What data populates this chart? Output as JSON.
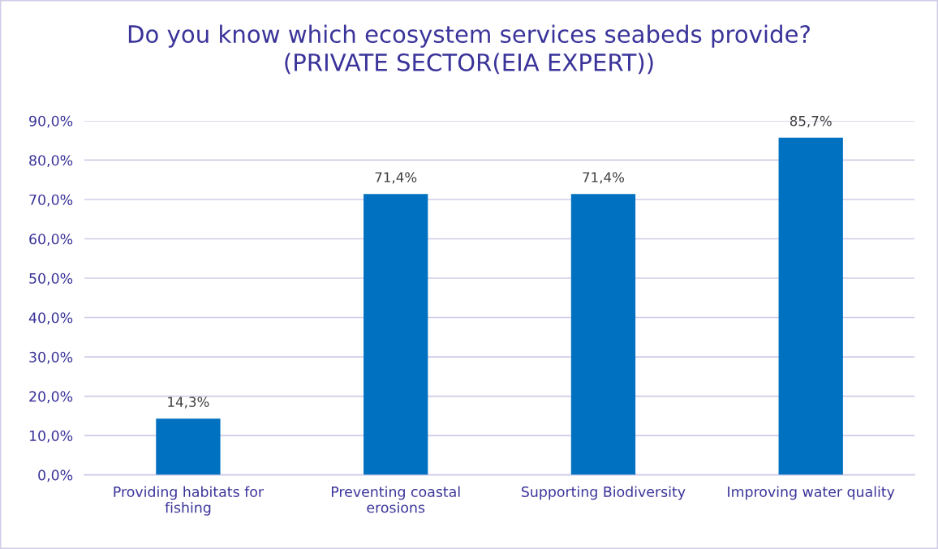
{
  "chart_data": {
    "type": "bar",
    "title": "Do you know which ecosystem services seabeds provide?\n(PRIVATE SECTOR(EIA EXPERT))",
    "categories": [
      "Providing habitats for\nfishing",
      "Preventing coastal\nerosions",
      "Supporting Biodiversity",
      "Improving water quality"
    ],
    "values": [
      14.3,
      71.4,
      71.4,
      85.7
    ],
    "value_labels": [
      "14,3%",
      "71,4%",
      "71,4%",
      "85,7%"
    ],
    "color": "#0070c0",
    "ylim": [
      0,
      90
    ],
    "yticks": [
      {
        "value": 0,
        "label": "0,0%"
      },
      {
        "value": 10,
        "label": "10,0%"
      },
      {
        "value": 20,
        "label": "20,0%"
      },
      {
        "value": 30,
        "label": "30,0%"
      },
      {
        "value": 40,
        "label": "40,0%"
      },
      {
        "value": 50,
        "label": "50,0%"
      },
      {
        "value": 60,
        "label": "60,0%"
      },
      {
        "value": 70,
        "label": "70,0%"
      },
      {
        "value": 80,
        "label": "80,0%"
      },
      {
        "value": 90,
        "label": "90,0%"
      }
    ],
    "grid": "y",
    "legend": false
  }
}
